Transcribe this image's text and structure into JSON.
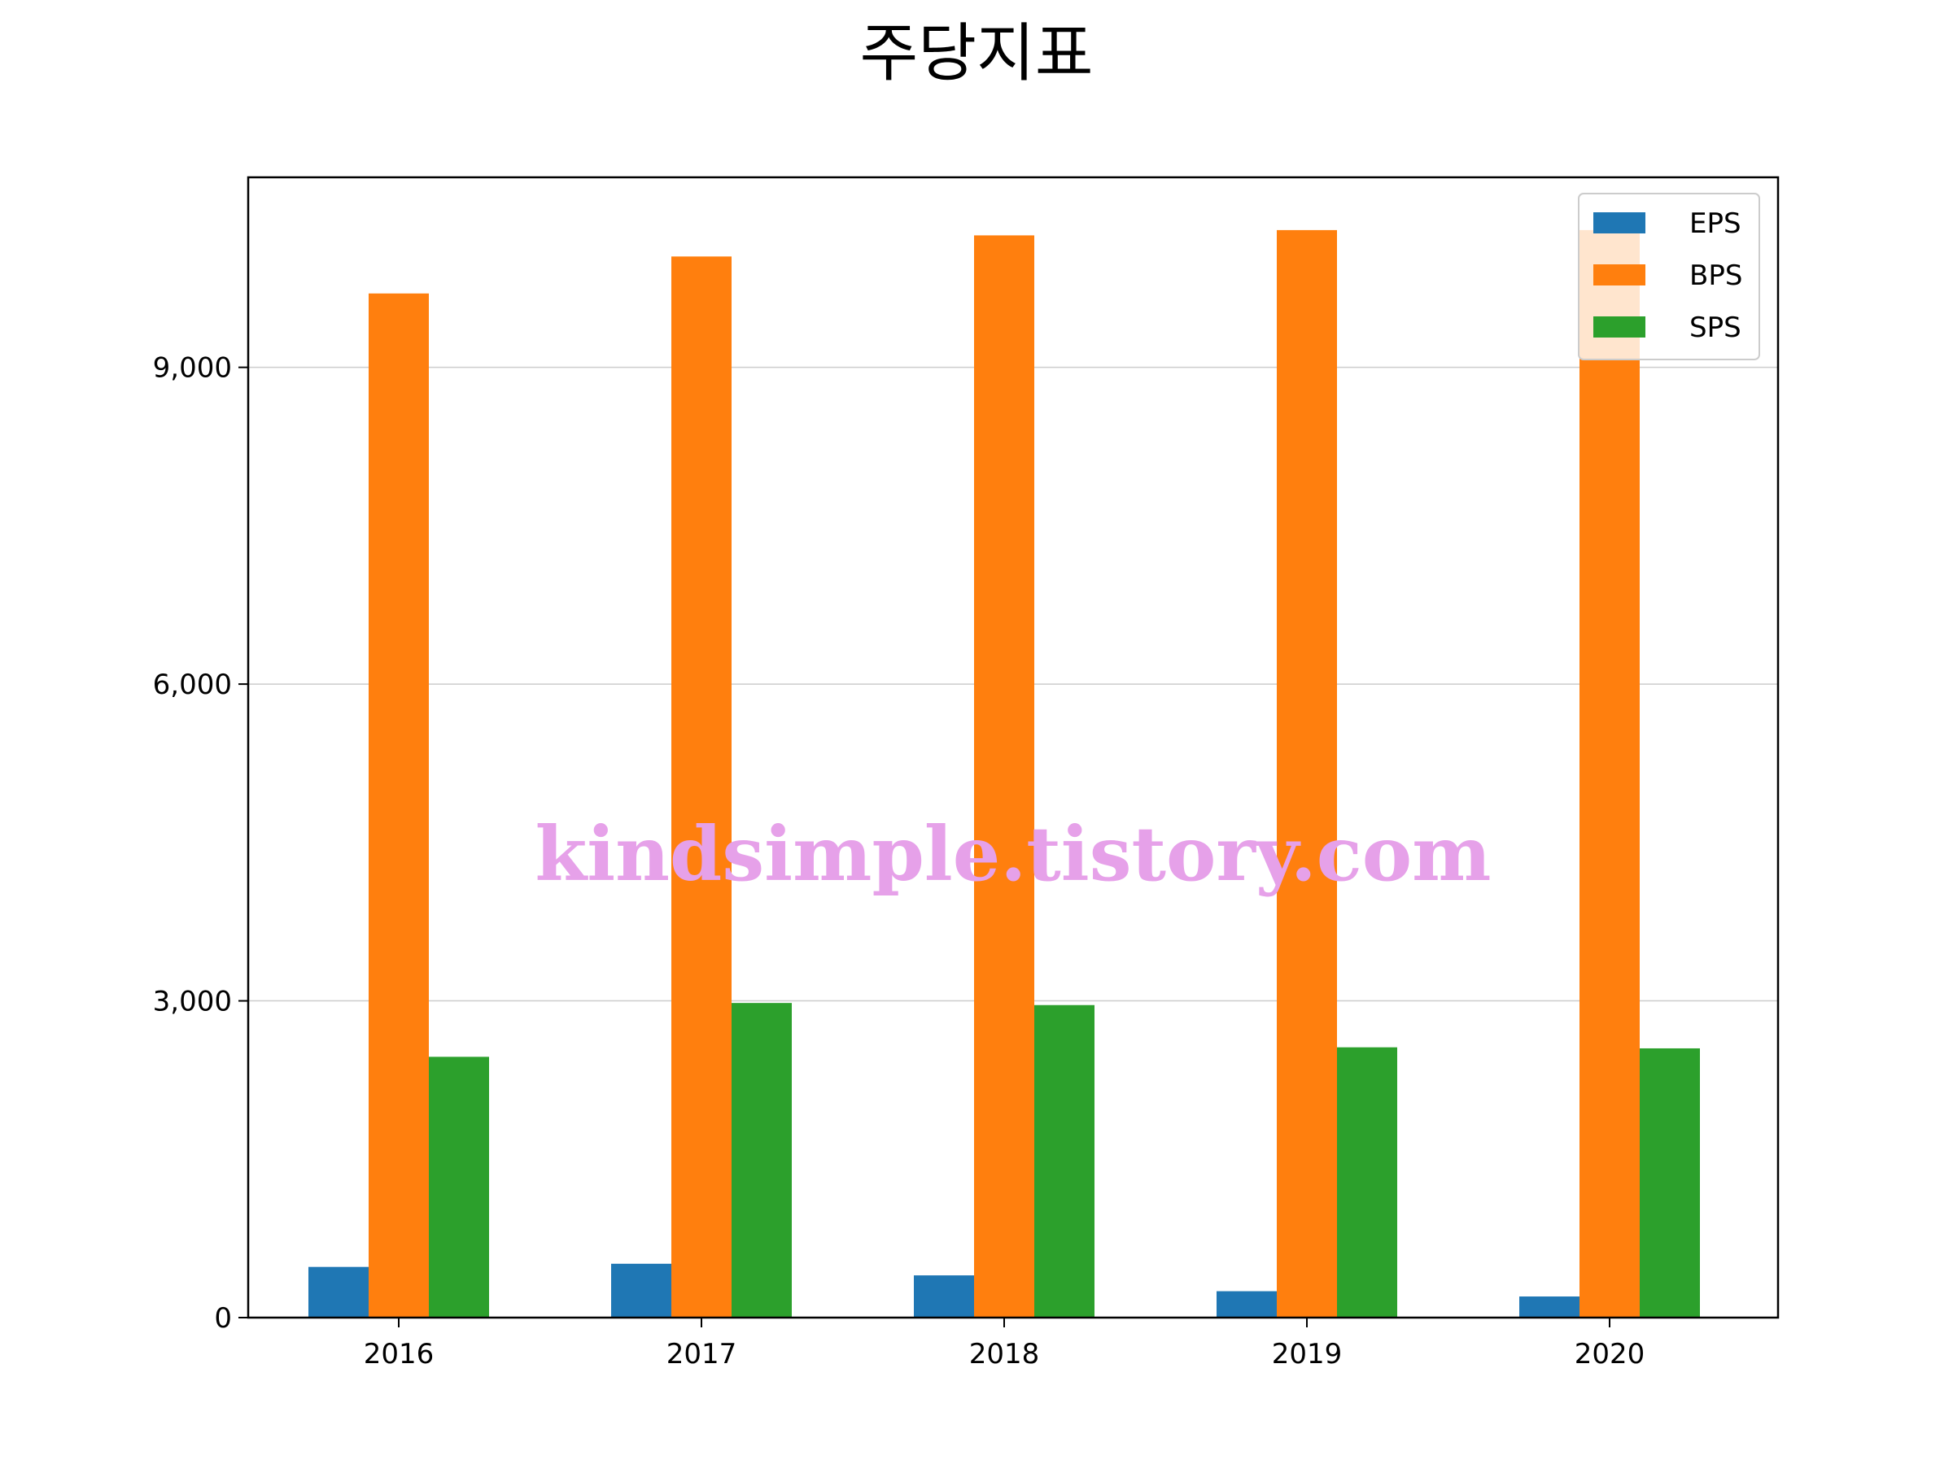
{
  "chart_data": {
    "type": "bar",
    "title": "주당지표",
    "xlabel": "",
    "ylabel": "",
    "categories": [
      "2016",
      "2017",
      "2018",
      "2019",
      "2020"
    ],
    "series": [
      {
        "name": "EPS",
        "color": "#1f77b4",
        "values": [
          480,
          510,
          400,
          250,
          200
        ]
      },
      {
        "name": "BPS",
        "color": "#ff7f0e",
        "values": [
          9700,
          10050,
          10250,
          10300,
          10300
        ]
      },
      {
        "name": "SPS",
        "color": "#2ca02c",
        "values": [
          2470,
          2980,
          2960,
          2560,
          2550
        ]
      }
    ],
    "ylim": [
      0,
      10800
    ],
    "yticks": [
      0,
      3000,
      6000,
      9000
    ],
    "ytick_labels": [
      "0",
      "3,000",
      "6,000",
      "9,000"
    ],
    "grid": "y",
    "legend_position": "top-right"
  },
  "watermark": "kindsimple.tistory.com"
}
